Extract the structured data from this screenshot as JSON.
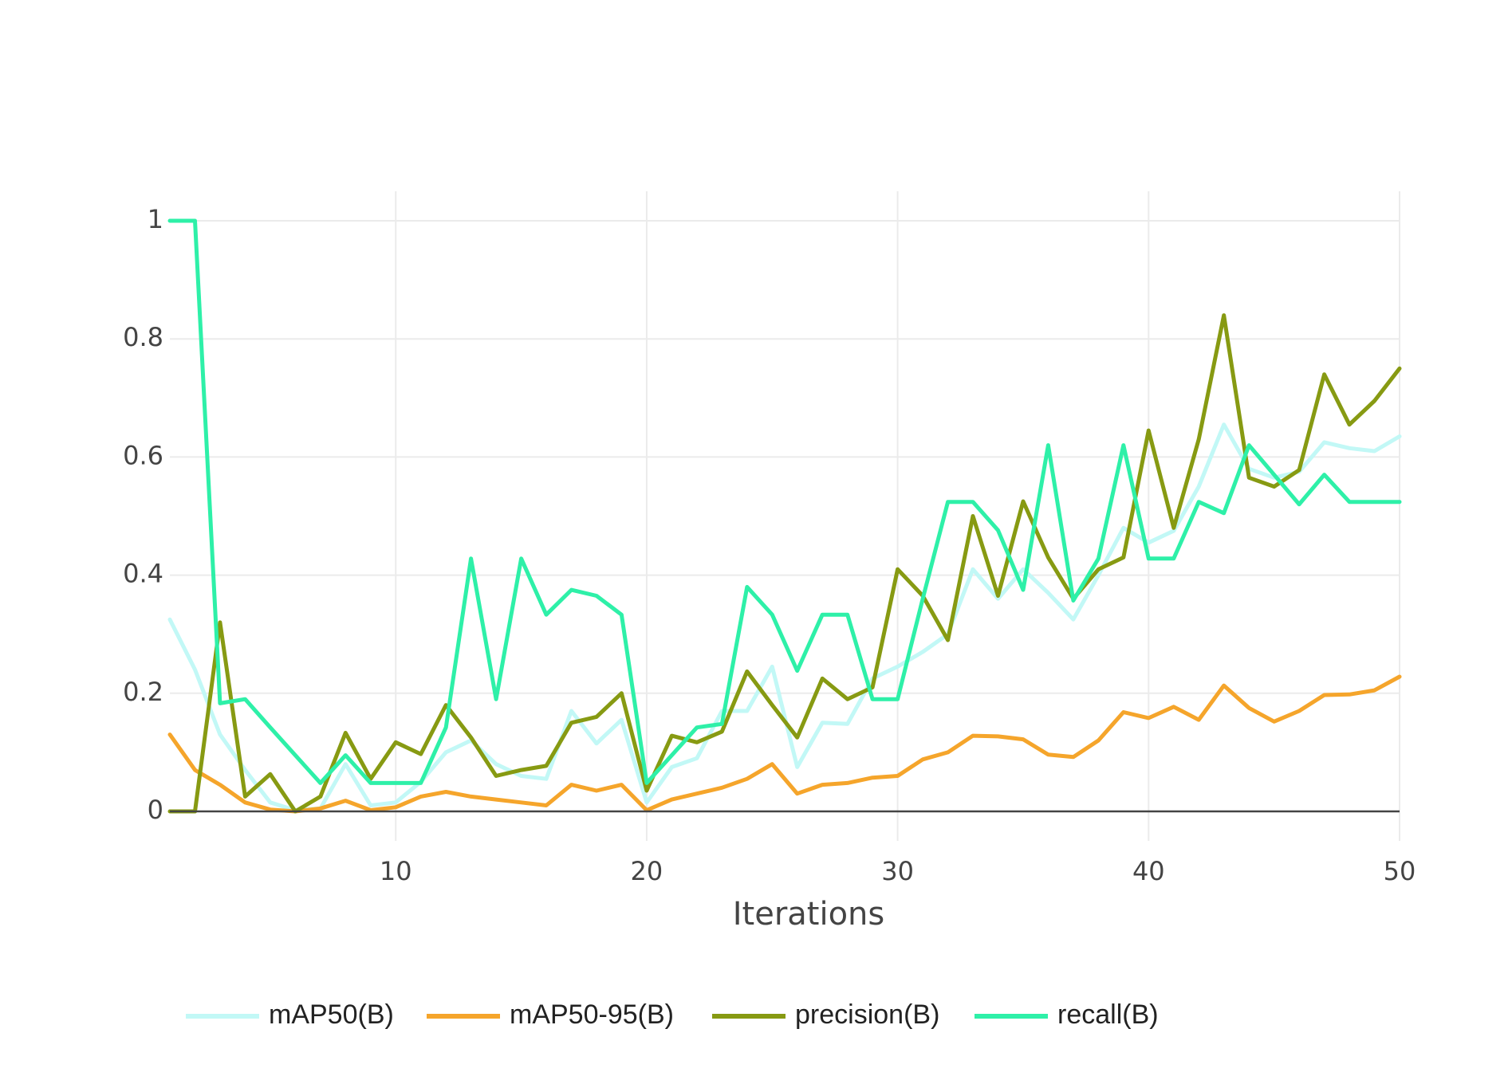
{
  "chart_data": {
    "type": "line",
    "title": "",
    "xlabel": "Iterations",
    "ylabel": "",
    "xlim": [
      1,
      50
    ],
    "ylim": [
      -0.05,
      1.05
    ],
    "x_ticks": [
      10,
      20,
      30,
      40,
      50
    ],
    "y_ticks": [
      0,
      0.2,
      0.4,
      0.6,
      0.8,
      1
    ],
    "y_tick_labels": [
      "0",
      "0.2",
      "0.4",
      "0.6",
      "0.8",
      "1"
    ],
    "grid": true,
    "legend_position": "bottom",
    "x": [
      1,
      2,
      3,
      4,
      5,
      6,
      7,
      8,
      9,
      10,
      11,
      12,
      13,
      14,
      15,
      16,
      17,
      18,
      19,
      20,
      21,
      22,
      23,
      24,
      25,
      26,
      27,
      28,
      29,
      30,
      31,
      32,
      33,
      34,
      35,
      36,
      37,
      38,
      39,
      40,
      41,
      42,
      43,
      44,
      45,
      46,
      47,
      48,
      49,
      50
    ],
    "series": [
      {
        "name": "mAP50(B)",
        "color": "#c2f8f6",
        "values": [
          0.325,
          0.24,
          0.13,
          0.07,
          0.015,
          0.002,
          0.005,
          0.08,
          0.01,
          0.015,
          0.05,
          0.1,
          0.12,
          0.08,
          0.06,
          0.055,
          0.17,
          0.115,
          0.155,
          0.015,
          0.075,
          0.09,
          0.17,
          0.17,
          0.245,
          0.075,
          0.15,
          0.148,
          0.225,
          0.245,
          0.27,
          0.3,
          0.41,
          0.36,
          0.41,
          0.37,
          0.325,
          0.4,
          0.48,
          0.455,
          0.475,
          0.55,
          0.655,
          0.58,
          0.565,
          0.575,
          0.625,
          0.615,
          0.61,
          0.635
        ]
      },
      {
        "name": "mAP50-95(B)",
        "color": "#f5a52b",
        "values": [
          0.13,
          0.07,
          0.045,
          0.015,
          0.003,
          0.0,
          0.005,
          0.018,
          0.002,
          0.007,
          0.025,
          0.033,
          0.025,
          0.02,
          0.015,
          0.01,
          0.045,
          0.035,
          0.045,
          0.002,
          0.02,
          0.03,
          0.04,
          0.055,
          0.08,
          0.03,
          0.045,
          0.048,
          0.057,
          0.06,
          0.088,
          0.1,
          0.128,
          0.127,
          0.122,
          0.096,
          0.092,
          0.12,
          0.168,
          0.158,
          0.177,
          0.155,
          0.213,
          0.175,
          0.152,
          0.17,
          0.197,
          0.198,
          0.205,
          0.228
        ]
      },
      {
        "name": "precision(B)",
        "color": "#879a12",
        "values": [
          0.0,
          0.0,
          0.32,
          0.025,
          0.063,
          0.0,
          0.025,
          0.133,
          0.055,
          0.117,
          0.097,
          0.18,
          0.125,
          0.06,
          0.07,
          0.077,
          0.15,
          0.16,
          0.2,
          0.035,
          0.128,
          0.117,
          0.135,
          0.237,
          0.18,
          0.125,
          0.225,
          0.19,
          0.21,
          0.41,
          0.365,
          0.29,
          0.5,
          0.365,
          0.525,
          0.43,
          0.36,
          0.41,
          0.43,
          0.645,
          0.48,
          0.63,
          0.84,
          0.565,
          0.55,
          0.578,
          0.74,
          0.655,
          0.695,
          0.75
        ]
      },
      {
        "name": "recall(B)",
        "color": "#2ef0a8",
        "values": [
          1.0,
          1.0,
          0.183,
          0.19,
          0.142,
          0.095,
          0.048,
          0.095,
          0.048,
          0.048,
          0.048,
          0.142,
          0.428,
          0.19,
          0.428,
          0.333,
          0.375,
          0.365,
          0.333,
          0.048,
          0.095,
          0.142,
          0.148,
          0.38,
          0.333,
          0.238,
          0.333,
          0.333,
          0.19,
          0.19,
          0.36,
          0.524,
          0.524,
          0.476,
          0.375,
          0.62,
          0.357,
          0.428,
          0.62,
          0.428,
          0.428,
          0.524,
          0.505,
          0.62,
          0.57,
          0.52,
          0.57,
          0.524,
          0.524,
          0.524
        ]
      }
    ]
  }
}
